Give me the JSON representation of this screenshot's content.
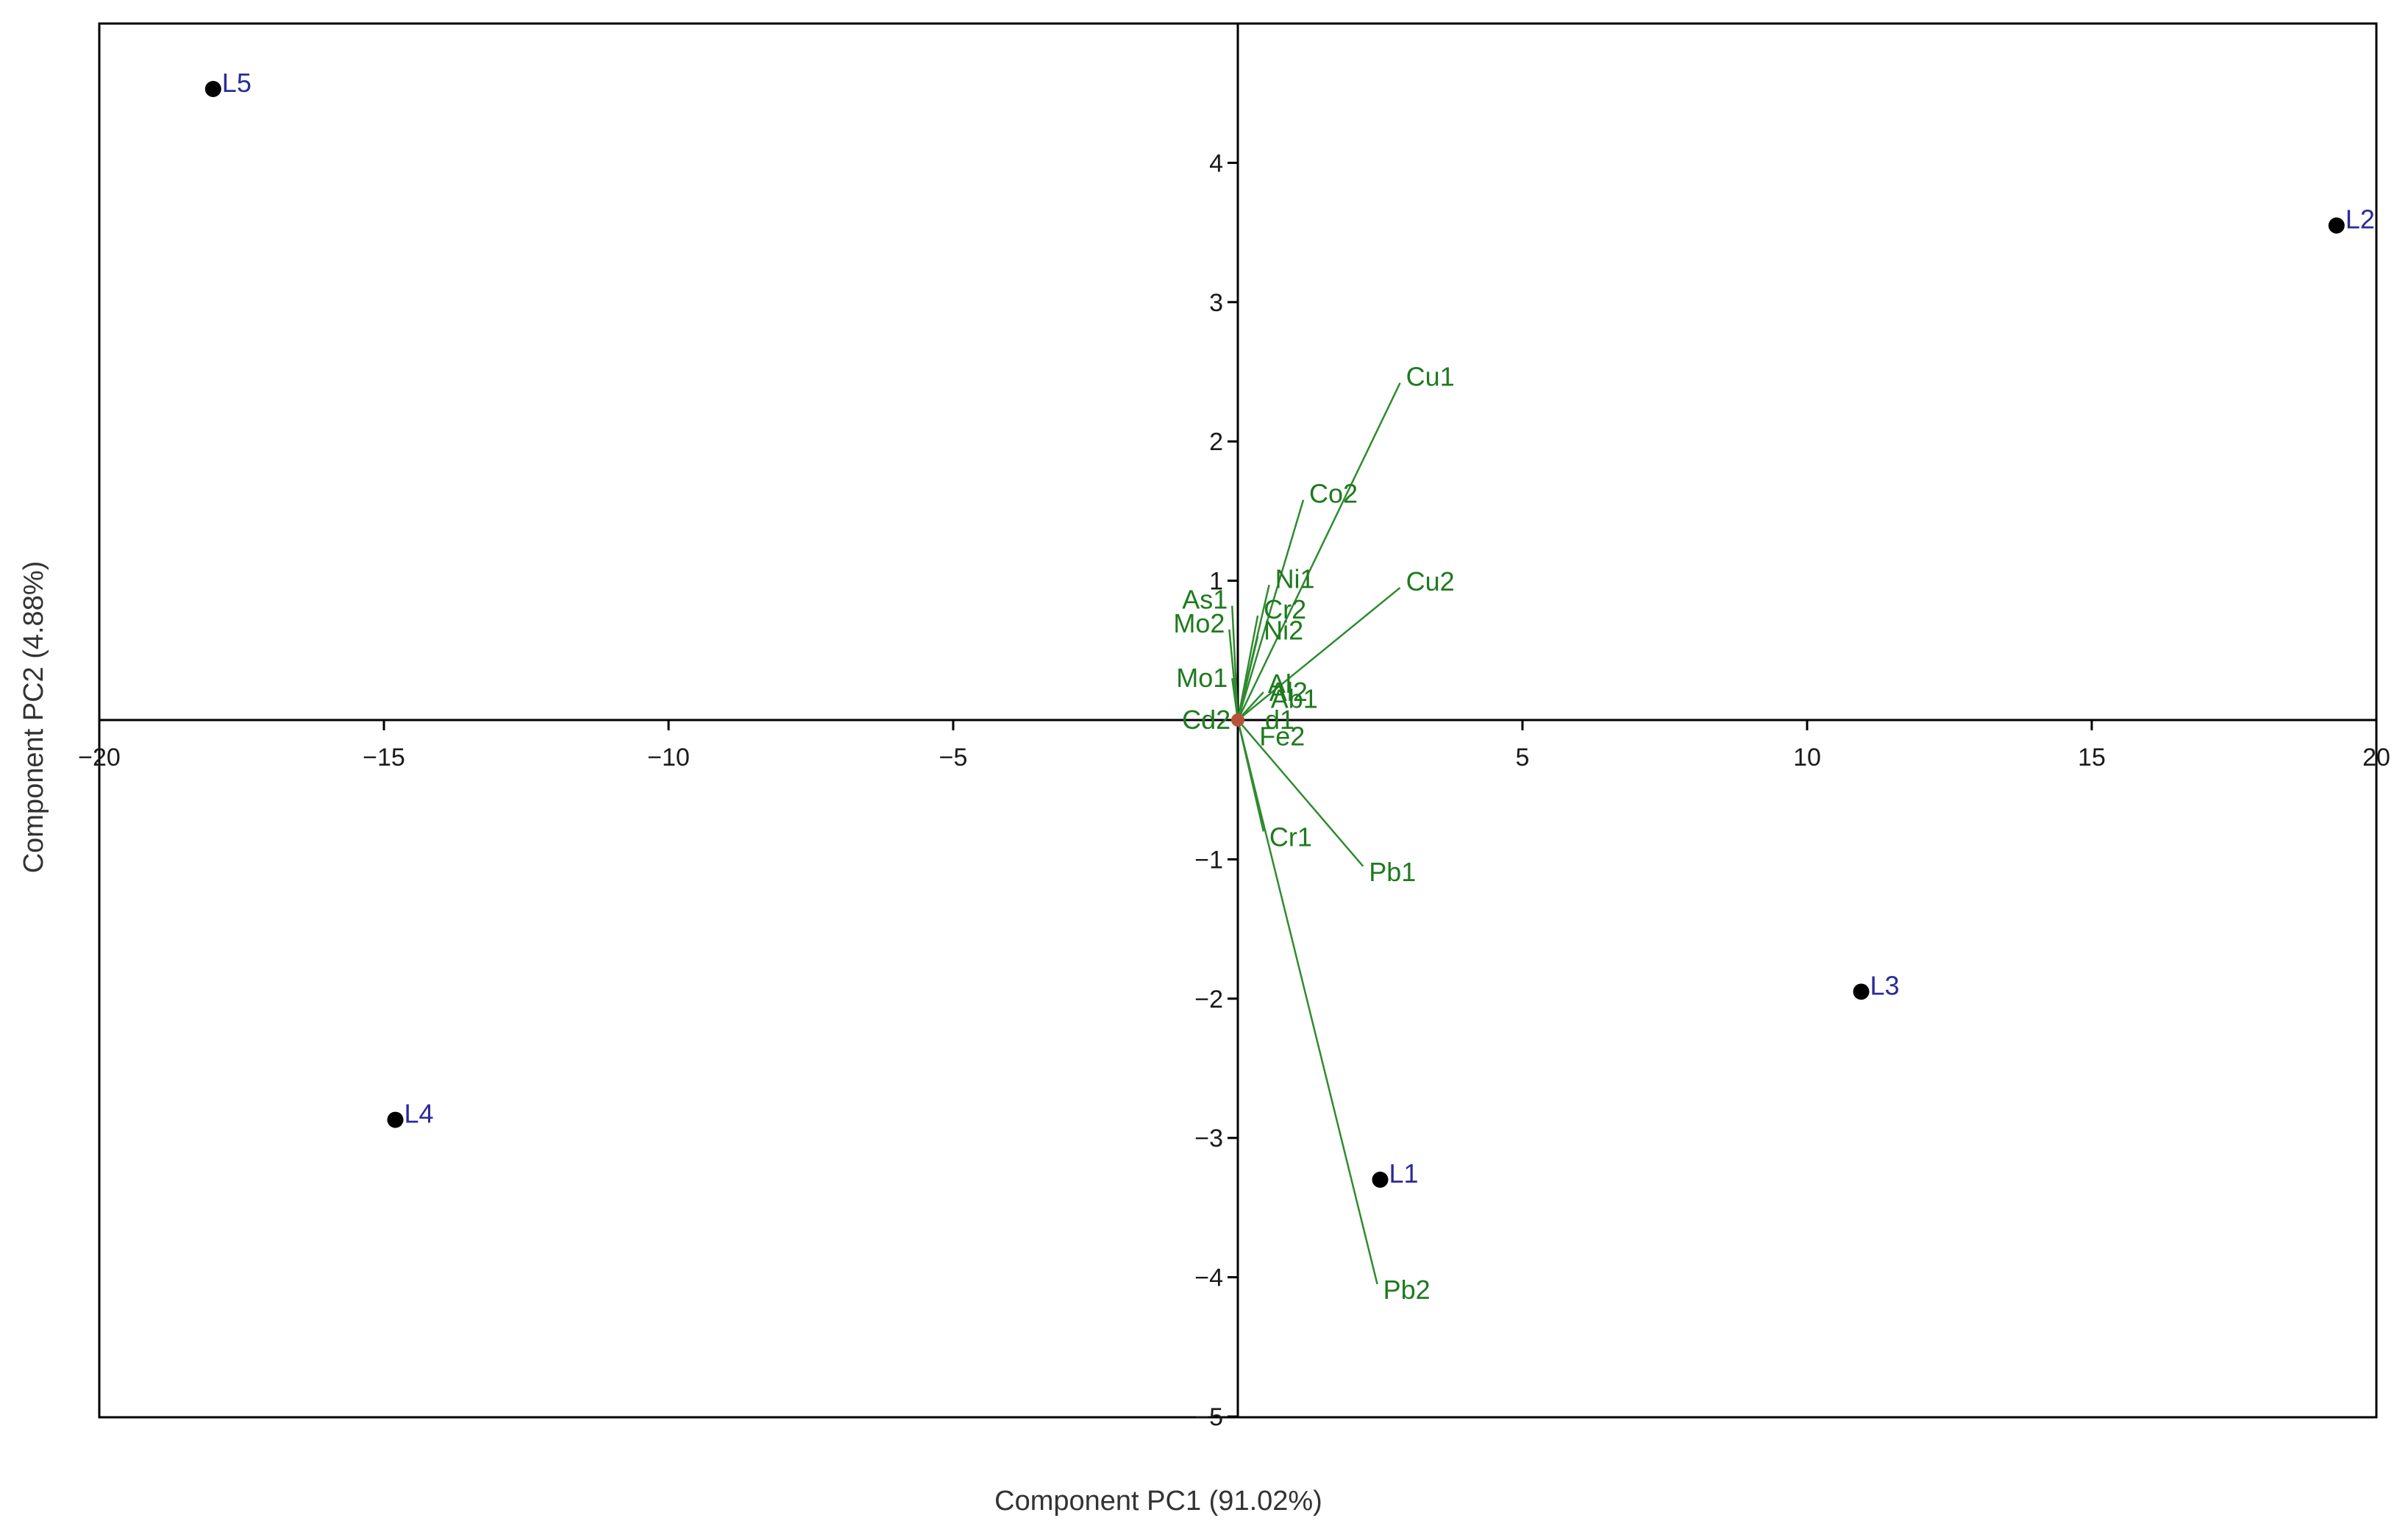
{
  "chart_data": {
    "type": "scatter",
    "subtype": "biplot",
    "title": "",
    "xlabel": "Component   PC1 (91.02%)",
    "ylabel": "Component   PC2 (4.88%)",
    "xlim": [
      -20,
      20
    ],
    "ylim": [
      -5,
      5
    ],
    "x_ticks": [
      -20,
      -15,
      -10,
      -5,
      5,
      10,
      15,
      20
    ],
    "x_tick_labels": [
      "−20",
      "−15",
      "−10",
      "−5",
      "5",
      "10",
      "15",
      "20"
    ],
    "y_ticks": [
      -5,
      -4,
      -3,
      -2,
      -1,
      1,
      2,
      3,
      4
    ],
    "y_tick_labels": [
      "−5",
      "−4",
      "−3",
      "−2",
      "−1",
      "1",
      "2",
      "3",
      "4"
    ],
    "grid": false,
    "colors": {
      "observation_marker": "#000000",
      "observation_label": "#2b2b9a",
      "loading_vector": "#2e8b2e",
      "loading_label": "#1e7a1e",
      "origin_marker": "#b5543a",
      "axes": "#000000"
    },
    "observations": [
      {
        "label": "L1",
        "x": 2.5,
        "y": -3.3
      },
      {
        "label": "L2",
        "x": 19.3,
        "y": 3.55
      },
      {
        "label": "L3",
        "x": 10.95,
        "y": -1.95
      },
      {
        "label": "L4",
        "x": -14.8,
        "y": -2.87
      },
      {
        "label": "L5",
        "x": -18.0,
        "y": 4.53
      }
    ],
    "loadings": [
      {
        "label": "Cu1",
        "x": 2.85,
        "y": 2.42
      },
      {
        "label": "Co2",
        "x": 1.15,
        "y": 1.58
      },
      {
        "label": "Cu2",
        "x": 2.85,
        "y": 0.95
      },
      {
        "label": "Ni1",
        "x": 0.55,
        "y": 0.97
      },
      {
        "label": "As1",
        "x": -0.1,
        "y": 0.82
      },
      {
        "label": "Cr2",
        "x": 0.35,
        "y": 0.75
      },
      {
        "label": "Mo2",
        "x": -0.15,
        "y": 0.65
      },
      {
        "label": "Ni2",
        "x": 0.35,
        "y": 0.6
      },
      {
        "label": "Mo1",
        "x": -0.1,
        "y": 0.3
      },
      {
        "label": "Al2",
        "x": 0.45,
        "y": 0.2
      },
      {
        "label": "Pb1",
        "x": 2.2,
        "y": -1.05
      },
      {
        "label": "Cr1",
        "x": 0.45,
        "y": -0.8
      },
      {
        "label": "Pb2",
        "x": 2.45,
        "y": -4.05
      },
      {
        "label": "Cd2",
        "x": -0.05,
        "y": 0.0
      }
    ],
    "overlapping_label_fragments": [
      {
        "text": "Ab1",
        "x": 0.5,
        "y": 0.15
      },
      {
        "text": "Al",
        "x": 0.45,
        "y": 0.26
      },
      {
        "text": "d1",
        "x": 0.4,
        "y": 0.0
      },
      {
        "text": "Fe2",
        "x": 0.3,
        "y": -0.12
      }
    ]
  }
}
